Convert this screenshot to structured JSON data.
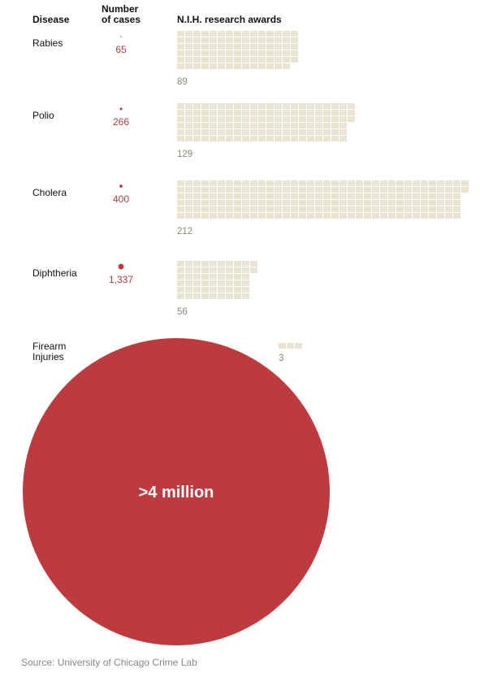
{
  "chart_data": {
    "type": "table",
    "headers": {
      "disease": "Disease",
      "cases_line1": "Number",
      "cases_line2": "of cases",
      "awards": "N.I.H. research awards"
    },
    "rows": [
      {
        "disease_lines": [
          "Rabies"
        ],
        "cases": 65,
        "cases_label": "65",
        "awards": 89,
        "awards_label": "89"
      },
      {
        "disease_lines": [
          "Polio"
        ],
        "cases": 266,
        "cases_label": "266",
        "awards": 129,
        "awards_label": "129"
      },
      {
        "disease_lines": [
          "Cholera"
        ],
        "cases": 400,
        "cases_label": "400",
        "awards": 212,
        "awards_label": "212"
      },
      {
        "disease_lines": [
          "Diphtheria"
        ],
        "cases": 1337,
        "cases_label": "1,337",
        "awards": 56,
        "awards_label": "56"
      },
      {
        "disease_lines": [
          "Firearm",
          "Injuries"
        ],
        "cases": 4000000,
        "cases_label": ">4 million",
        "awards": 3,
        "awards_label": "3"
      }
    ],
    "source": "Source: University of Chicago Crime Lab",
    "colors": {
      "cases": "#bd3a3e",
      "cases_text": "#b5393a",
      "awards": "#e8e4d1",
      "awards_text": "#8a8a78"
    }
  }
}
